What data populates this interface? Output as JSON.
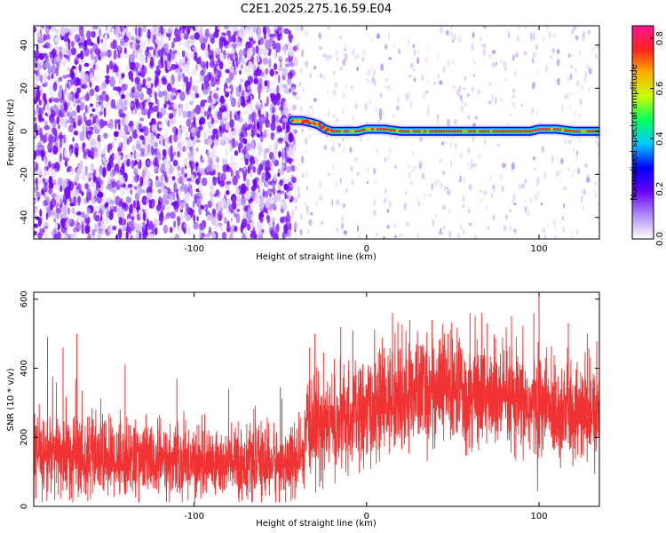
{
  "title": "C2E1.2025.275.16.59.E04",
  "chart_data": [
    {
      "type": "heatmap",
      "xlabel": "Height of straight line (km)",
      "ylabel": "Frequency (Hz)",
      "xlim": [
        -193,
        135
      ],
      "ylim": [
        -50,
        49
      ],
      "xticks": [
        -100,
        0,
        100
      ],
      "yticks": [
        -40,
        -20,
        0,
        20,
        40
      ],
      "x_tick_labels": [
        "-100",
        "0",
        "100"
      ],
      "y_tick_labels": [
        "-40",
        "-20",
        "0",
        "20",
        "40"
      ],
      "noise_region_upper_x": -43,
      "signal_track": {
        "x": [
          -43,
          -38,
          -32,
          -28,
          -24,
          -20,
          -15,
          -10,
          -5,
          0,
          5,
          10,
          20,
          40,
          60,
          80,
          95,
          100,
          110,
          120,
          135
        ],
        "frequency": [
          5,
          5,
          4,
          3,
          1,
          0,
          0,
          0,
          0,
          1,
          1,
          1,
          0,
          0,
          0,
          0,
          0,
          1,
          1,
          0,
          0
        ],
        "peak_amplitude": 0.85
      },
      "colorbar": {
        "label": "Normalized spectral amplitude",
        "range": [
          0.0,
          0.85
        ],
        "ticks": [
          0.0,
          0.2,
          0.4,
          0.6,
          0.8
        ],
        "tick_labels": [
          "0.0",
          "0.2",
          "0.4",
          "0.6",
          "0.8"
        ],
        "colors": [
          "#ffffff",
          "#b08cf5",
          "#6a00ff",
          "#0000ff",
          "#00c8ff",
          "#00ff64",
          "#c8ff00",
          "#ffb000",
          "#ff2020",
          "#ff1493"
        ]
      },
      "grid": false
    },
    {
      "type": "line",
      "xlabel": "Height of straight line (km)",
      "ylabel": "SNR (10 * v/v)",
      "xlim": [
        -193,
        135
      ],
      "ylim": [
        0,
        620
      ],
      "xticks": [
        -100,
        0,
        100
      ],
      "yticks": [
        0,
        200,
        400,
        600
      ],
      "x_tick_labels": [
        "-100",
        "0",
        "100"
      ],
      "y_tick_labels": [
        "0",
        "200",
        "400",
        "600"
      ],
      "color": "#f03232",
      "grid": false,
      "series": [
        {
          "x": [
            -193,
            -180,
            -170,
            -160,
            -150,
            -140,
            -130,
            -120,
            -110,
            -100,
            -90,
            -80,
            -70,
            -60,
            -50,
            -40,
            -36,
            -35,
            -30,
            -20,
            -10,
            0,
            10,
            20,
            30,
            40,
            50,
            60,
            70,
            80,
            90,
            100,
            110,
            120,
            130,
            135
          ],
          "y": [
            150,
            150,
            145,
            140,
            140,
            135,
            135,
            130,
            130,
            130,
            125,
            125,
            125,
            125,
            125,
            125,
            130,
            220,
            230,
            240,
            250,
            270,
            300,
            320,
            330,
            340,
            340,
            330,
            320,
            300,
            290,
            290,
            280,
            270,
            260,
            260
          ],
          "spread": [
            110,
            115,
            115,
            110,
            105,
            100,
            100,
            95,
            95,
            95,
            95,
            95,
            95,
            95,
            95,
            95,
            95,
            130,
            130,
            130,
            130,
            135,
            140,
            140,
            145,
            145,
            145,
            145,
            140,
            140,
            135,
            135,
            130,
            130,
            130,
            130
          ],
          "spikes": [
            {
              "x": -185,
              "y": 490
            },
            {
              "x": -176,
              "y": 460
            },
            {
              "x": -168,
              "y": 500
            },
            {
              "x": -140,
              "y": 410
            },
            {
              "x": -110,
              "y": 370
            },
            {
              "x": -80,
              "y": 340
            },
            {
              "x": -50,
              "y": 345
            },
            {
              "x": -33,
              "y": 460
            },
            {
              "x": -30,
              "y": 500
            },
            {
              "x": -25,
              "y": 445
            },
            {
              "x": -15,
              "y": 520
            },
            {
              "x": -8,
              "y": 510
            },
            {
              "x": 15,
              "y": 560
            },
            {
              "x": 25,
              "y": 540
            },
            {
              "x": 38,
              "y": 540
            },
            {
              "x": 60,
              "y": 560
            },
            {
              "x": 70,
              "y": 530
            },
            {
              "x": 84,
              "y": 550
            },
            {
              "x": 97,
              "y": 560
            },
            {
              "x": 100,
              "y": 620
            },
            {
              "x": 117,
              "y": 530
            },
            {
              "x": 128,
              "y": 500
            }
          ]
        }
      ]
    }
  ]
}
